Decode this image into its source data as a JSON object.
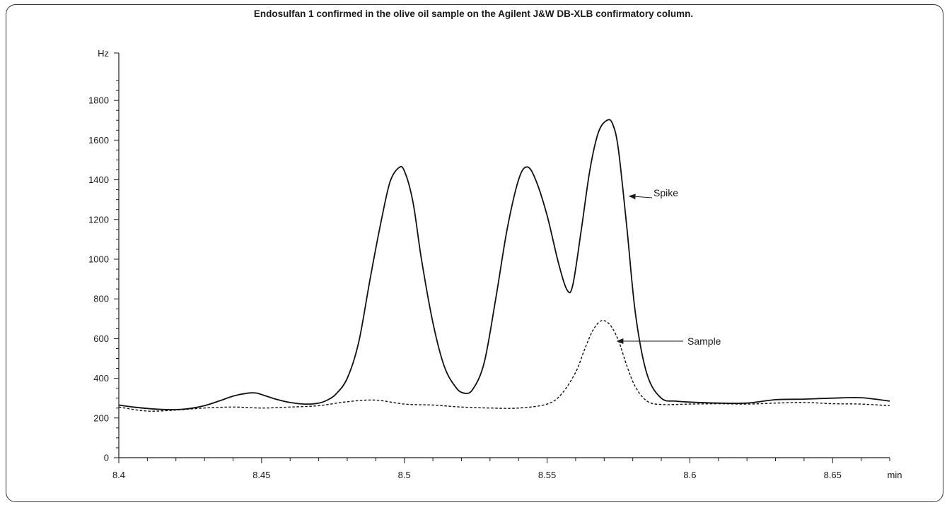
{
  "chart_data": {
    "type": "line",
    "title": "Endosulfan 1 confirmed in the olive oil sample on the Agilent J&W DB-XLB confirmatory column.",
    "ylabel": "Hz",
    "xlabel": "min",
    "xlim": [
      8.4,
      8.67
    ],
    "ylim": [
      0,
      1950
    ],
    "x_ticks": [
      8.4,
      8.45,
      8.5,
      8.55,
      8.6,
      8.65
    ],
    "x_tick_labels": [
      "8.4",
      "8.45",
      "8.5",
      "8.55",
      "8.6",
      "8.65"
    ],
    "y_ticks": [
      0,
      200,
      400,
      600,
      800,
      1000,
      1200,
      1400,
      1600,
      1800
    ],
    "y_tick_labels": [
      "0",
      "200",
      "400",
      "600",
      "800",
      "1000",
      "1200",
      "1400",
      "1600",
      "1800"
    ],
    "grid": false,
    "series": [
      {
        "name": "Spike",
        "style": "solid",
        "x": [
          8.4,
          8.405,
          8.41,
          8.415,
          8.42,
          8.425,
          8.43,
          8.435,
          8.44,
          8.445,
          8.448,
          8.45,
          8.455,
          8.46,
          8.465,
          8.47,
          8.473,
          8.476,
          8.48,
          8.484,
          8.488,
          8.492,
          8.495,
          8.498,
          8.5,
          8.503,
          8.506,
          8.51,
          8.514,
          8.518,
          8.521,
          8.524,
          8.528,
          8.532,
          8.536,
          8.54,
          8.543,
          8.546,
          8.55,
          8.554,
          8.557,
          8.559,
          8.562,
          8.565,
          8.568,
          8.571,
          8.573,
          8.575,
          8.578,
          8.581,
          8.585,
          8.59,
          8.595,
          8.6,
          8.61,
          8.62,
          8.63,
          8.64,
          8.65,
          8.66,
          8.67
        ],
        "y": [
          265,
          255,
          248,
          243,
          242,
          248,
          262,
          285,
          310,
          325,
          326,
          318,
          295,
          278,
          270,
          275,
          290,
          320,
          400,
          580,
          900,
          1200,
          1390,
          1460,
          1445,
          1290,
          1000,
          680,
          460,
          355,
          325,
          345,
          480,
          800,
          1150,
          1400,
          1465,
          1400,
          1220,
          980,
          845,
          870,
          1150,
          1450,
          1640,
          1700,
          1680,
          1550,
          1150,
          720,
          420,
          300,
          285,
          280,
          275,
          275,
          292,
          295,
          300,
          302,
          285
        ]
      },
      {
        "name": "Sample",
        "style": "dashed",
        "x": [
          8.4,
          8.41,
          8.42,
          8.43,
          8.44,
          8.45,
          8.46,
          8.47,
          8.48,
          8.49,
          8.5,
          8.51,
          8.52,
          8.53,
          8.54,
          8.55,
          8.555,
          8.56,
          8.563,
          8.566,
          8.569,
          8.572,
          8.575,
          8.578,
          8.581,
          8.585,
          8.59,
          8.6,
          8.61,
          8.62,
          8.63,
          8.64,
          8.65,
          8.66,
          8.67
        ],
        "y": [
          255,
          235,
          240,
          250,
          255,
          250,
          255,
          262,
          282,
          290,
          270,
          265,
          255,
          250,
          250,
          270,
          320,
          430,
          540,
          640,
          690,
          670,
          590,
          460,
          355,
          285,
          268,
          270,
          272,
          270,
          275,
          278,
          272,
          270,
          262
        ]
      }
    ],
    "annotations": [
      {
        "text": "Spike",
        "x": 8.578,
        "y": 1300
      },
      {
        "text": "Sample",
        "x": 8.573,
        "y": 570
      }
    ]
  }
}
